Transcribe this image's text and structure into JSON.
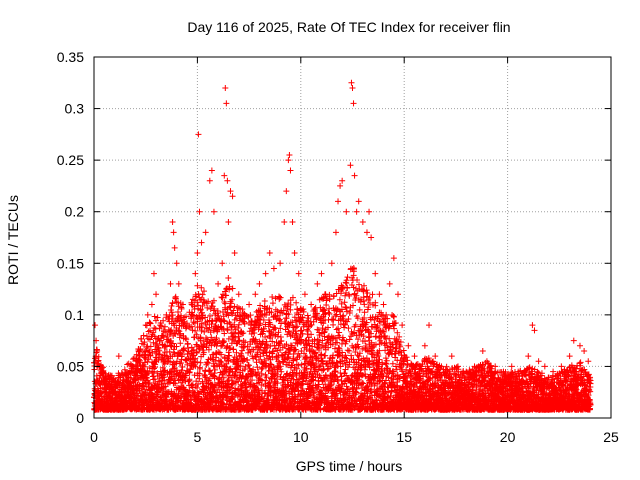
{
  "chart_data": {
    "type": "scatter",
    "title": "Day 116 of 2025, Rate Of TEC Index for receiver flin",
    "xlabel": "GPS time / hours",
    "ylabel": "ROTI / TECUs",
    "xlim": [
      0,
      25
    ],
    "ylim": [
      0,
      0.35
    ],
    "grid": true,
    "marker": "+",
    "marker_color": "#ff0000",
    "x_ticks": [
      0,
      5,
      10,
      15,
      20,
      25
    ],
    "x_tick_labels": [
      "0",
      "5",
      "10",
      "15",
      "20",
      "25"
    ],
    "y_ticks": [
      0,
      0.05,
      0.1,
      0.15,
      0.2,
      0.25,
      0.3,
      0.35
    ],
    "y_tick_labels": [
      "0",
      "0.05",
      "0.1",
      "0.15",
      "0.2",
      "0.25",
      "0.3",
      "0.35"
    ],
    "series": [
      {
        "points": [
          [
            0.0,
            0.02
          ],
          [
            0.05,
            0.09
          ],
          [
            0.1,
            0.075
          ],
          [
            0.15,
            0.065
          ],
          [
            0.2,
            0.055
          ],
          [
            0.3,
            0.05
          ],
          [
            0.4,
            0.045
          ],
          [
            0.6,
            0.035
          ],
          [
            0.8,
            0.03
          ],
          [
            1.0,
            0.025
          ],
          [
            1.2,
            0.06
          ],
          [
            1.4,
            0.04
          ],
          [
            1.6,
            0.035
          ],
          [
            1.8,
            0.03
          ],
          [
            2.0,
            0.045
          ],
          [
            2.2,
            0.06
          ],
          [
            2.4,
            0.08
          ],
          [
            2.5,
            0.09
          ],
          [
            2.6,
            0.1
          ],
          [
            2.8,
            0.11
          ],
          [
            2.9,
            0.14
          ],
          [
            3.0,
            0.12
          ],
          [
            3.2,
            0.09
          ],
          [
            3.5,
            0.1
          ],
          [
            3.7,
            0.13
          ],
          [
            3.8,
            0.19
          ],
          [
            3.85,
            0.18
          ],
          [
            3.9,
            0.165
          ],
          [
            4.0,
            0.15
          ],
          [
            4.1,
            0.13
          ],
          [
            4.3,
            0.11
          ],
          [
            4.5,
            0.09
          ],
          [
            4.7,
            0.1
          ],
          [
            4.9,
            0.14
          ],
          [
            5.0,
            0.16
          ],
          [
            5.05,
            0.275
          ],
          [
            5.1,
            0.2
          ],
          [
            5.2,
            0.17
          ],
          [
            5.4,
            0.18
          ],
          [
            5.6,
            0.23
          ],
          [
            5.7,
            0.24
          ],
          [
            5.8,
            0.2
          ],
          [
            6.0,
            0.13
          ],
          [
            6.2,
            0.15
          ],
          [
            6.3,
            0.235
          ],
          [
            6.35,
            0.32
          ],
          [
            6.4,
            0.305
          ],
          [
            6.45,
            0.23
          ],
          [
            6.5,
            0.19
          ],
          [
            6.6,
            0.22
          ],
          [
            6.7,
            0.215
          ],
          [
            6.8,
            0.16
          ],
          [
            7.0,
            0.12
          ],
          [
            7.2,
            0.1
          ],
          [
            7.5,
            0.11
          ],
          [
            7.8,
            0.12
          ],
          [
            8.0,
            0.13
          ],
          [
            8.3,
            0.14
          ],
          [
            8.5,
            0.16
          ],
          [
            8.7,
            0.145
          ],
          [
            9.0,
            0.15
          ],
          [
            9.2,
            0.19
          ],
          [
            9.3,
            0.22
          ],
          [
            9.4,
            0.25
          ],
          [
            9.45,
            0.255
          ],
          [
            9.5,
            0.24
          ],
          [
            9.6,
            0.19
          ],
          [
            9.7,
            0.16
          ],
          [
            9.9,
            0.14
          ],
          [
            10.2,
            0.12
          ],
          [
            10.5,
            0.11
          ],
          [
            10.8,
            0.13
          ],
          [
            11.0,
            0.14
          ],
          [
            11.2,
            0.12
          ],
          [
            11.5,
            0.15
          ],
          [
            11.7,
            0.18
          ],
          [
            11.8,
            0.21
          ],
          [
            11.9,
            0.225
          ],
          [
            12.0,
            0.23
          ],
          [
            12.2,
            0.2
          ],
          [
            12.4,
            0.245
          ],
          [
            12.45,
            0.325
          ],
          [
            12.5,
            0.32
          ],
          [
            12.55,
            0.305
          ],
          [
            12.6,
            0.235
          ],
          [
            12.7,
            0.2
          ],
          [
            12.8,
            0.21
          ],
          [
            13.0,
            0.19
          ],
          [
            13.2,
            0.18
          ],
          [
            13.3,
            0.2
          ],
          [
            13.4,
            0.175
          ],
          [
            13.6,
            0.14
          ],
          [
            13.8,
            0.12
          ],
          [
            14.0,
            0.11
          ],
          [
            14.3,
            0.13
          ],
          [
            14.5,
            0.155
          ],
          [
            14.7,
            0.12
          ],
          [
            14.9,
            0.09
          ],
          [
            15.2,
            0.07
          ],
          [
            15.5,
            0.06
          ],
          [
            15.8,
            0.05
          ],
          [
            16.0,
            0.07
          ],
          [
            16.2,
            0.09
          ],
          [
            16.5,
            0.06
          ],
          [
            16.8,
            0.05
          ],
          [
            17.0,
            0.045
          ],
          [
            17.3,
            0.06
          ],
          [
            17.6,
            0.05
          ],
          [
            18.0,
            0.045
          ],
          [
            18.4,
            0.05
          ],
          [
            18.8,
            0.065
          ],
          [
            19.0,
            0.055
          ],
          [
            19.4,
            0.05
          ],
          [
            19.8,
            0.045
          ],
          [
            20.2,
            0.05
          ],
          [
            20.6,
            0.045
          ],
          [
            21.0,
            0.06
          ],
          [
            21.2,
            0.09
          ],
          [
            21.3,
            0.085
          ],
          [
            21.5,
            0.055
          ],
          [
            21.8,
            0.05
          ],
          [
            22.2,
            0.045
          ],
          [
            22.6,
            0.05
          ],
          [
            23.0,
            0.06
          ],
          [
            23.2,
            0.075
          ],
          [
            23.5,
            0.07
          ],
          [
            23.7,
            0.065
          ],
          [
            23.9,
            0.055
          ],
          [
            24.0,
            0.03
          ]
        ],
        "envelope": [
          [
            0.0,
            0.075
          ],
          [
            0.5,
            0.045
          ],
          [
            1.0,
            0.04
          ],
          [
            1.5,
            0.05
          ],
          [
            2.0,
            0.06
          ],
          [
            2.5,
            0.09
          ],
          [
            3.0,
            0.1
          ],
          [
            3.5,
            0.1
          ],
          [
            4.0,
            0.12
          ],
          [
            4.5,
            0.1
          ],
          [
            5.0,
            0.13
          ],
          [
            5.5,
            0.12
          ],
          [
            6.0,
            0.11
          ],
          [
            6.5,
            0.14
          ],
          [
            7.0,
            0.11
          ],
          [
            7.5,
            0.1
          ],
          [
            8.0,
            0.11
          ],
          [
            8.5,
            0.12
          ],
          [
            9.0,
            0.12
          ],
          [
            9.5,
            0.12
          ],
          [
            10.0,
            0.11
          ],
          [
            10.5,
            0.1
          ],
          [
            11.0,
            0.12
          ],
          [
            11.5,
            0.12
          ],
          [
            12.0,
            0.13
          ],
          [
            12.5,
            0.15
          ],
          [
            13.0,
            0.13
          ],
          [
            13.5,
            0.12
          ],
          [
            14.0,
            0.1
          ],
          [
            14.5,
            0.1
          ],
          [
            15.0,
            0.065
          ],
          [
            15.5,
            0.05
          ],
          [
            16.0,
            0.06
          ],
          [
            16.5,
            0.055
          ],
          [
            17.0,
            0.05
          ],
          [
            17.5,
            0.05
          ],
          [
            18.0,
            0.045
          ],
          [
            18.5,
            0.05
          ],
          [
            19.0,
            0.055
          ],
          [
            19.5,
            0.045
          ],
          [
            20.0,
            0.045
          ],
          [
            20.5,
            0.045
          ],
          [
            21.0,
            0.05
          ],
          [
            21.5,
            0.045
          ],
          [
            22.0,
            0.04
          ],
          [
            22.5,
            0.045
          ],
          [
            23.0,
            0.05
          ],
          [
            23.5,
            0.055
          ],
          [
            24.0,
            0.04
          ]
        ]
      }
    ]
  }
}
